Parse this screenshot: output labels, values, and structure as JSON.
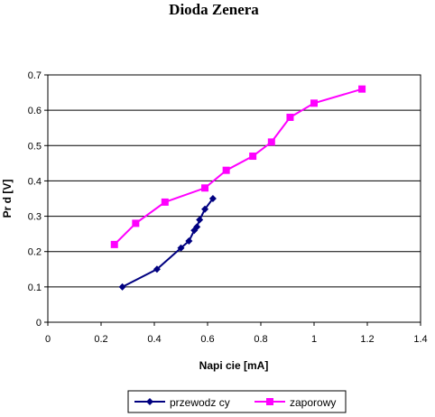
{
  "chart_data": {
    "type": "line",
    "title": "Dioda Zenera",
    "xlabel": "Napi cie [mA]",
    "ylabel": "Pr d [V]",
    "xlim": [
      0,
      1.4
    ],
    "ylim": [
      0,
      0.7
    ],
    "xticks": [
      "0",
      "0.2",
      "0.4",
      "0.6",
      "0.8",
      "1",
      "1.2",
      "1.4"
    ],
    "yticks": [
      "0",
      "0.1",
      "0.2",
      "0.3",
      "0.4",
      "0.5",
      "0.6",
      "0.7"
    ],
    "grid": "horizontal",
    "legend_position": "bottom",
    "series": [
      {
        "name": "przewodz cy",
        "color": "#000080",
        "marker": "diamond",
        "x": [
          0.28,
          0.41,
          0.5,
          0.53,
          0.55,
          0.56,
          0.57,
          0.59,
          0.62
        ],
        "y": [
          0.1,
          0.15,
          0.21,
          0.23,
          0.26,
          0.27,
          0.29,
          0.32,
          0.35
        ]
      },
      {
        "name": "zaporowy",
        "color": "#ff00ff",
        "marker": "square",
        "x": [
          0.25,
          0.33,
          0.44,
          0.59,
          0.67,
          0.77,
          0.84,
          0.91,
          1.0,
          1.18
        ],
        "y": [
          0.22,
          0.28,
          0.34,
          0.38,
          0.43,
          0.47,
          0.51,
          0.58,
          0.62,
          0.66
        ]
      }
    ]
  }
}
